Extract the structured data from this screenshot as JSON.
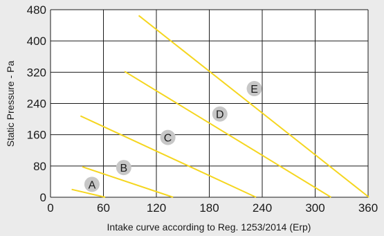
{
  "chart_data": {
    "type": "line",
    "title": "",
    "xlabel": "Intake curve according to Reg. 1253/2014 (Erp)",
    "ylabel": "Static Pressure - Pa",
    "xlim": [
      0,
      360
    ],
    "ylim": [
      0,
      480
    ],
    "xticks": [
      0,
      60,
      120,
      180,
      240,
      300,
      360
    ],
    "yticks": [
      0,
      80,
      160,
      240,
      320,
      400,
      480
    ],
    "grid": true,
    "line_color": "#f5d61f",
    "series": [
      {
        "name": "A",
        "points": [
          [
            24,
            20
          ],
          [
            62,
            0
          ]
        ],
        "label_pos": [
          47,
          33
        ]
      },
      {
        "name": "B",
        "points": [
          [
            36,
            78
          ],
          [
            139,
            0
          ]
        ],
        "label_pos": [
          83,
          76
        ]
      },
      {
        "name": "C",
        "points": [
          [
            34,
            208
          ],
          [
            233,
            0
          ]
        ],
        "label_pos": [
          133,
          153
        ]
      },
      {
        "name": "D",
        "points": [
          [
            84,
            322
          ],
          [
            318,
            0
          ]
        ],
        "label_pos": [
          192,
          213
        ]
      },
      {
        "name": "E",
        "points": [
          [
            100,
            465
          ],
          [
            361,
            0
          ]
        ],
        "label_pos": [
          231,
          278
        ]
      }
    ]
  }
}
